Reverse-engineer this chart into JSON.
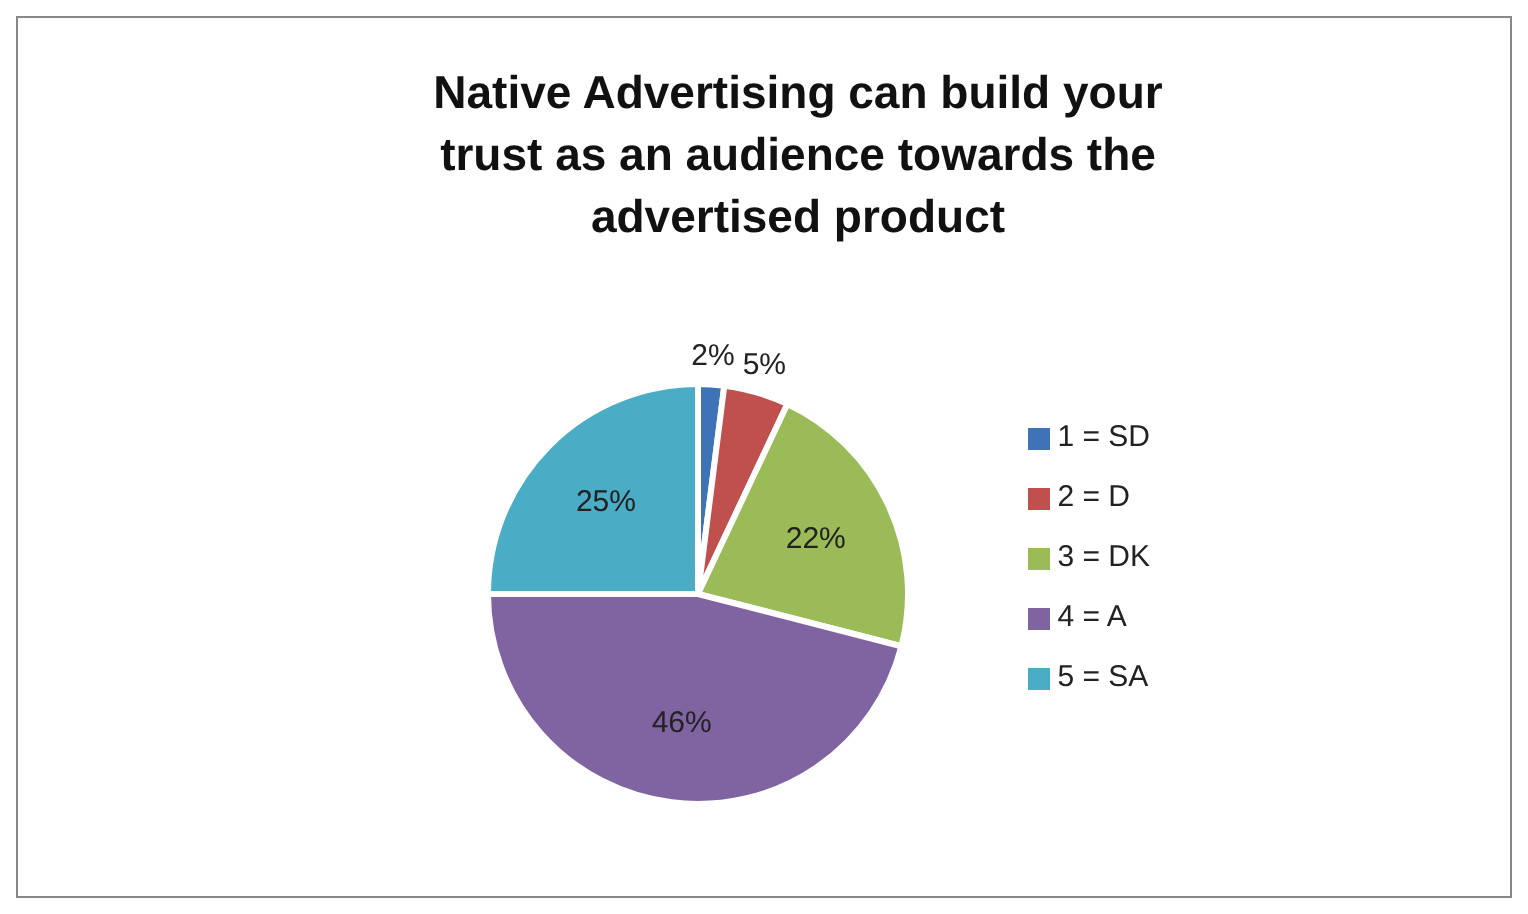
{
  "chart_data": {
    "type": "pie",
    "title": "Native Advertising can build your trust as an audience towards the advertised product",
    "categories": [
      "1 = SD",
      "2 = D",
      "3 = DK",
      "4 = A",
      "5 = SA"
    ],
    "values": [
      2,
      5,
      22,
      46,
      25
    ],
    "value_labels": [
      "2%",
      "5%",
      "22%",
      "46%",
      "25%"
    ],
    "colors": [
      "#3f73b8",
      "#c0504d",
      "#9bbb59",
      "#8064a2",
      "#4bacc6"
    ],
    "legend": "right"
  }
}
